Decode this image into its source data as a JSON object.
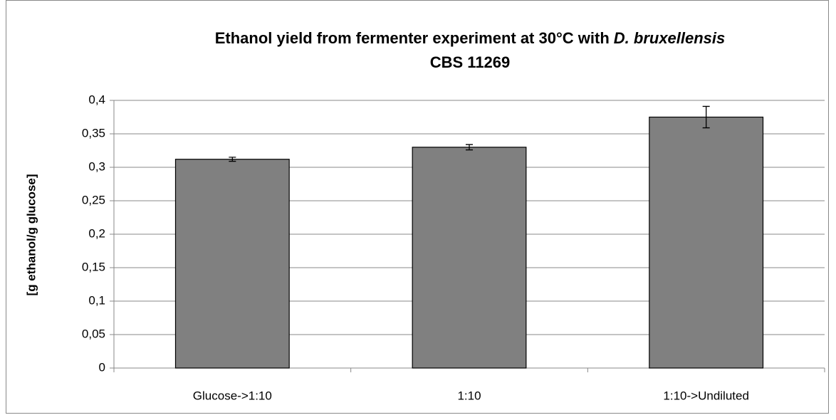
{
  "chart_data": {
    "type": "bar",
    "title": [
      "Ethanol yield from fermenter experiment at 30°C with",
      "D. bruxellensis",
      "CBS 11269"
    ],
    "y_label": "[g ethanol/g glucose]",
    "categories": [
      "Glucose->1:10",
      "1:10",
      "1:10->Undiluted"
    ],
    "values": [
      0.312,
      0.33,
      0.375
    ],
    "errors": [
      0.003,
      0.004,
      0.016
    ],
    "color": "#808080",
    "ylim": [
      0,
      0.4
    ],
    "yticks": [
      0,
      {
        "value": 0.05,
        "label": "0,05"
      },
      {
        "value": 0.1,
        "label": "0,1"
      },
      {
        "value": 0.15,
        "label": "0,15"
      },
      {
        "value": 0.2,
        "label": "0,2"
      },
      {
        "value": 0.25,
        "label": "0,25"
      },
      {
        "value": 0.3,
        "label": "0,3"
      },
      {
        "value": 0.35,
        "label": "0,35"
      },
      {
        "value": 0.4,
        "label": "0,4"
      }
    ],
    "grid": true
  }
}
